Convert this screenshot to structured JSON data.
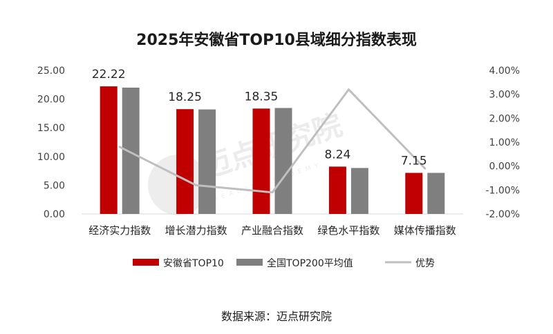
{
  "chart_data": {
    "type": "bar",
    "title": "2025年安徽省TOP10县域细分指数表现",
    "categories": [
      "经济实力指数",
      "增长潜力指数",
      "产业融合指数",
      "绿色水平指数",
      "媒体传播指数"
    ],
    "series": [
      {
        "name": "安徽省TOP10",
        "kind": "bar",
        "axis": "left",
        "color": "#c00000",
        "values": [
          22.22,
          18.25,
          18.35,
          8.24,
          7.15
        ],
        "data_labels": [
          "22.22",
          "18.25",
          "18.35",
          "8.24",
          "7.15"
        ]
      },
      {
        "name": "全国TOP200平均值",
        "kind": "bar",
        "axis": "left",
        "color": "#7f7f7f",
        "values": [
          22.0,
          18.2,
          18.45,
          8.0,
          7.15
        ]
      },
      {
        "name": "优势",
        "kind": "line",
        "axis": "right",
        "color": "#bfbfbf",
        "values": [
          0.8,
          -0.8,
          -1.1,
          3.2,
          -0.1
        ]
      }
    ],
    "y_left": {
      "min": 0,
      "max": 25,
      "ticks": [
        0,
        5,
        10,
        15,
        20,
        25
      ],
      "tick_labels": [
        "0.00",
        "5.00",
        "10.00",
        "15.00",
        "20.00",
        "25.00"
      ]
    },
    "y_right": {
      "min": -2,
      "max": 4,
      "ticks": [
        -2,
        -1,
        0,
        1,
        2,
        3,
        4
      ],
      "tick_labels": [
        "-2.00%",
        "-1.00%",
        "0.00%",
        "1.00%",
        "2.00%",
        "3.00%",
        "4.00%"
      ]
    },
    "grid": false,
    "legend_position": "bottom"
  },
  "source": "数据来源：迈点研究院",
  "watermark": {
    "text": "迈点研究院",
    "subtext": "MEADIN ACADEMY"
  }
}
